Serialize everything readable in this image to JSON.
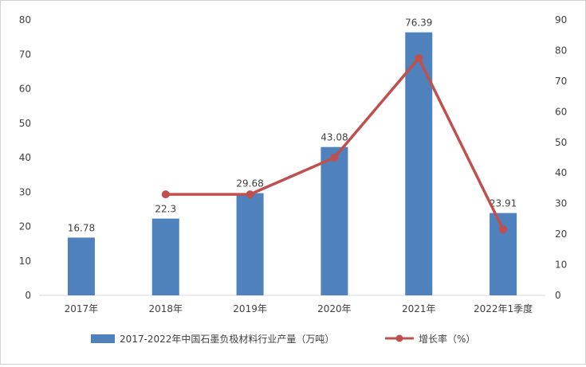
{
  "chart_data": {
    "type": "bar+line",
    "categories": [
      "2017年",
      "2018年",
      "2019年",
      "2020年",
      "2021年",
      "2022年1季度"
    ],
    "series": [
      {
        "name": "2017-2022年中国石墨负极材料行业产量（万吨）",
        "type": "bar",
        "axis": "left",
        "values": [
          16.78,
          22.3,
          29.68,
          43.08,
          76.39,
          23.91
        ],
        "color": "#4f81bd"
      },
      {
        "name": "增长率（%）",
        "type": "line",
        "axis": "right",
        "values": [
          null,
          33,
          33,
          45,
          77.5,
          21.5
        ],
        "color": "#c0504d"
      }
    ],
    "data_labels": [
      "16.78",
      "22.3",
      "29.68",
      "43.08",
      "76.39",
      "23.91"
    ],
    "left_axis": {
      "min": 0,
      "max": 80,
      "step": 10,
      "ticks": [
        "0",
        "10",
        "20",
        "30",
        "40",
        "50",
        "60",
        "70",
        "80"
      ]
    },
    "right_axis": {
      "min": 0,
      "max": 90,
      "step": 10,
      "ticks": [
        "0",
        "10",
        "20",
        "30",
        "40",
        "50",
        "60",
        "70",
        "80",
        "90"
      ]
    },
    "legend_position": "bottom",
    "grid": false
  }
}
